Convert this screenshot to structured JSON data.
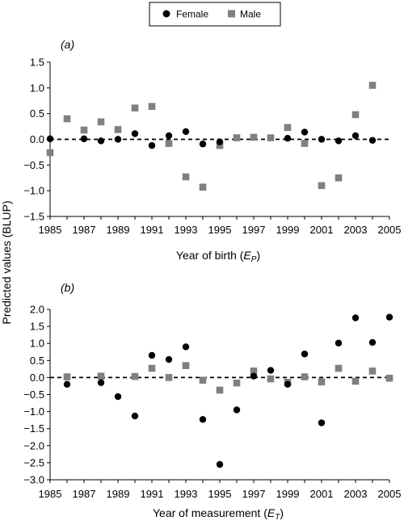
{
  "legend": {
    "items": [
      {
        "label": "Female",
        "marker": "circle",
        "color": "#000000"
      },
      {
        "label": "Male",
        "marker": "square",
        "color": "#808080"
      }
    ]
  },
  "shared_ylabel": "Predicted values (BLUP)",
  "chart_data": [
    {
      "type": "scatter",
      "panel_label": "(a)",
      "xlabel_main": "Year of birth (",
      "xlabel_sym": "E",
      "xlabel_sub": "P",
      "xlabel_end": ")",
      "xlim": [
        1985,
        2005
      ],
      "ylim": [
        -1.5,
        1.5
      ],
      "xticks": [
        "1985",
        "1987",
        "1989",
        "1991",
        "1993",
        "1995",
        "1997",
        "1999",
        "2001",
        "2003",
        "2005"
      ],
      "yticks": [
        "1.5",
        "1.0",
        "0.5",
        "0.0",
        "−0.5",
        "−1.0",
        "−1.5"
      ],
      "reference_line": 0,
      "series": [
        {
          "name": "Female",
          "points": [
            [
              1985,
              0.01
            ],
            [
              1987,
              0.01
            ],
            [
              1988,
              -0.03
            ],
            [
              1989,
              0.0
            ],
            [
              1990,
              0.11
            ],
            [
              1991,
              -0.12
            ],
            [
              1992,
              0.07
            ],
            [
              1993,
              0.15
            ],
            [
              1994,
              -0.09
            ],
            [
              1995,
              -0.05
            ],
            [
              1999,
              0.02
            ],
            [
              2000,
              0.14
            ],
            [
              2001,
              0.0
            ],
            [
              2002,
              -0.03
            ],
            [
              2003,
              0.07
            ],
            [
              2004,
              -0.02
            ]
          ]
        },
        {
          "name": "Male",
          "points": [
            [
              1985,
              -0.26
            ],
            [
              1986,
              0.4
            ],
            [
              1987,
              0.18
            ],
            [
              1988,
              0.34
            ],
            [
              1989,
              0.19
            ],
            [
              1990,
              0.61
            ],
            [
              1991,
              0.64
            ],
            [
              1992,
              -0.08
            ],
            [
              1993,
              -0.73
            ],
            [
              1994,
              -0.93
            ],
            [
              1995,
              -0.12
            ],
            [
              1996,
              0.03
            ],
            [
              1997,
              0.04
            ],
            [
              1998,
              0.03
            ],
            [
              1999,
              0.23
            ],
            [
              2000,
              -0.08
            ],
            [
              2001,
              -0.9
            ],
            [
              2002,
              -0.75
            ],
            [
              2003,
              0.48
            ],
            [
              2004,
              1.05
            ]
          ]
        }
      ]
    },
    {
      "type": "scatter",
      "panel_label": "(b)",
      "xlabel_main": "Year of measurement (",
      "xlabel_sym": "E",
      "xlabel_sub": "T",
      "xlabel_end": ")",
      "xlim": [
        1985,
        2005
      ],
      "ylim": [
        -3.0,
        2.0
      ],
      "xticks": [
        "1985",
        "1987",
        "1989",
        "1991",
        "1993",
        "1995",
        "1997",
        "1999",
        "2001",
        "2003",
        "2005"
      ],
      "yticks": [
        "2.0",
        "1.5",
        "1.0",
        "0.5",
        "0.0",
        "−0.5",
        "−1.0",
        "−1.5",
        "−2.0",
        "−2.5",
        "−3.0"
      ],
      "reference_line": 0,
      "series": [
        {
          "name": "Female",
          "points": [
            [
              1986,
              -0.2
            ],
            [
              1988,
              -0.15
            ],
            [
              1989,
              -0.56
            ],
            [
              1990,
              -1.13
            ],
            [
              1991,
              0.65
            ],
            [
              1992,
              0.53
            ],
            [
              1993,
              0.9
            ],
            [
              1994,
              -1.23
            ],
            [
              1995,
              -2.55
            ],
            [
              1996,
              -0.95
            ],
            [
              1997,
              0.04
            ],
            [
              1998,
              0.21
            ],
            [
              1999,
              -0.2
            ],
            [
              2000,
              0.69
            ],
            [
              2001,
              -1.33
            ],
            [
              2002,
              1.01
            ],
            [
              2003,
              1.75
            ],
            [
              2004,
              1.03
            ],
            [
              2005,
              1.77
            ]
          ]
        },
        {
          "name": "Male",
          "points": [
            [
              1986,
              0.02
            ],
            [
              1988,
              0.04
            ],
            [
              1990,
              0.03
            ],
            [
              1991,
              0.27
            ],
            [
              1992,
              0.0
            ],
            [
              1993,
              0.35
            ],
            [
              1994,
              -0.08
            ],
            [
              1995,
              -0.37
            ],
            [
              1996,
              -0.16
            ],
            [
              1997,
              0.19
            ],
            [
              1998,
              -0.04
            ],
            [
              1999,
              -0.14
            ],
            [
              2000,
              0.02
            ],
            [
              2001,
              -0.13
            ],
            [
              2002,
              0.27
            ],
            [
              2003,
              -0.11
            ],
            [
              2004,
              0.19
            ],
            [
              2005,
              -0.02
            ]
          ]
        }
      ]
    }
  ]
}
